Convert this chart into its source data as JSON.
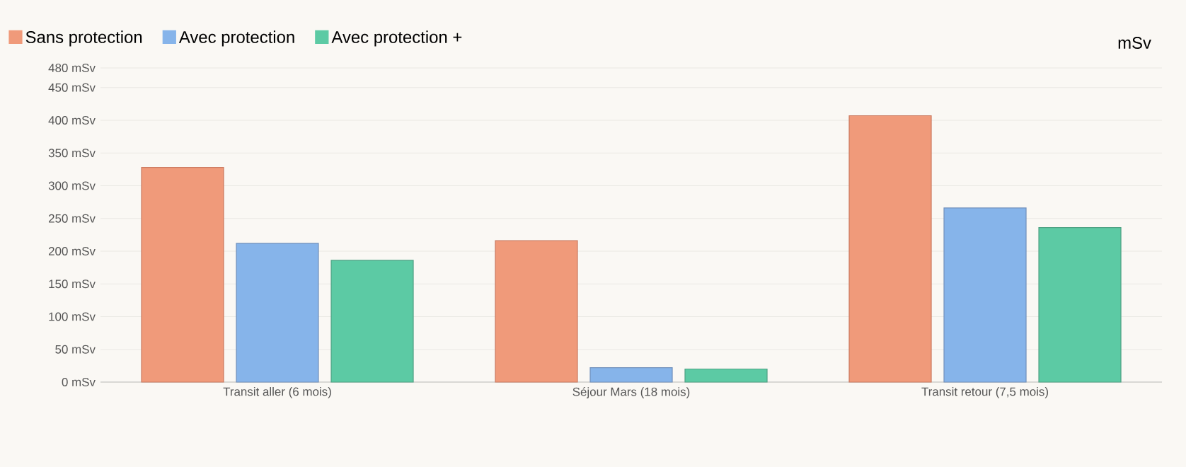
{
  "chart_data": {
    "type": "bar",
    "categories": [
      "Transit aller (6 mois)",
      "Séjour Mars (18 mois)",
      "Transit retour (7,5 mois)"
    ],
    "series": [
      {
        "name": "Sans protection",
        "color": "#f09a7a",
        "values": [
          328,
          216,
          407
        ]
      },
      {
        "name": "Avec protection",
        "color": "#86b4ea",
        "values": [
          212,
          22,
          266
        ]
      },
      {
        "name": "Avec protection +",
        "color": "#5ccaa4",
        "values": [
          186,
          20,
          236
        ]
      }
    ],
    "ylim": [
      0,
      480
    ],
    "yticks": [
      {
        "value": 0,
        "label": "0 mSv"
      },
      {
        "value": 50,
        "label": "50 mSv"
      },
      {
        "value": 100,
        "label": "100 mSv"
      },
      {
        "value": 150,
        "label": "150 mSv"
      },
      {
        "value": 200,
        "label": "200 mSv"
      },
      {
        "value": 250,
        "label": "250 mSv"
      },
      {
        "value": 300,
        "label": "300 mSv"
      },
      {
        "value": 350,
        "label": "350 mSv"
      },
      {
        "value": 400,
        "label": "400 mSv"
      },
      {
        "value": 450,
        "label": "450 mSv"
      },
      {
        "value": 480,
        "label": "480 mSv"
      }
    ],
    "annotations": [
      "mSv"
    ],
    "grid": "y",
    "legend": "top left"
  }
}
